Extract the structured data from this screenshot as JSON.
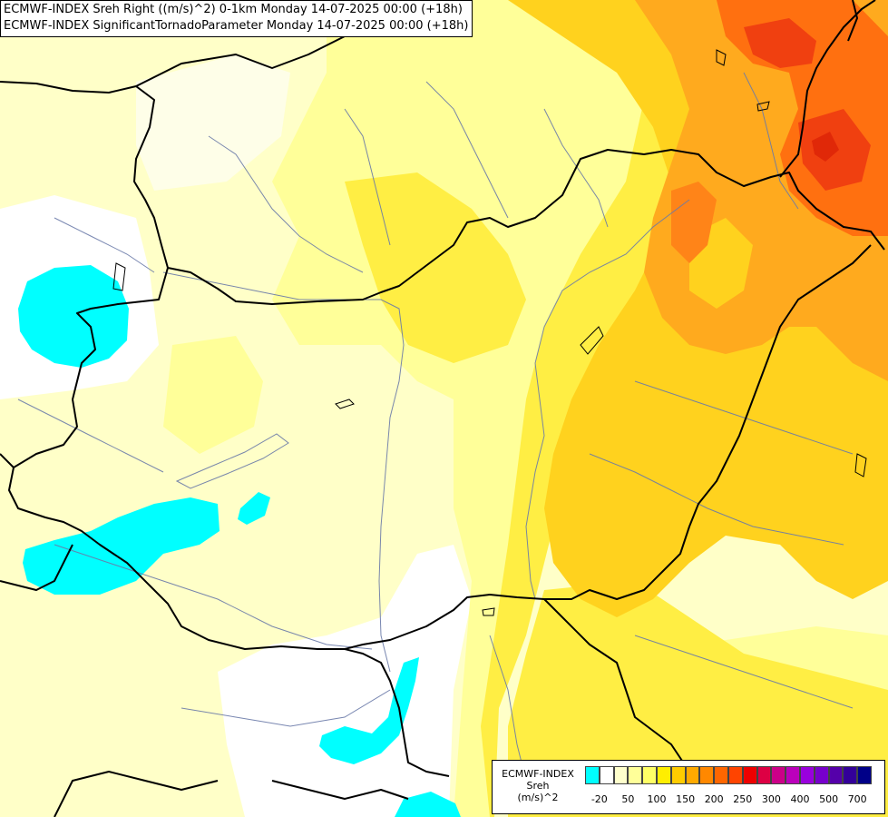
{
  "titles": {
    "line1": "ECMWF-INDEX Sreh Right ((m/s)^2) 0-1km Monday 14-07-2025 00:00 (+18h)",
    "line2": "ECMWF-INDEX SignificantTornadoParameter Monday 14-07-2025 00:00 (+18h)"
  },
  "legend": {
    "line1": "ECMWF-INDEX",
    "line2": "Sreh",
    "line3": "(m/s)^2",
    "ticks": [
      "-20",
      "50",
      "100",
      "150",
      "200",
      "250",
      "300",
      "400",
      "500",
      "700"
    ],
    "colors": [
      "#00ffff",
      "#ffffff",
      "#ffffcc",
      "#ffff99",
      "#ffff66",
      "#ffee00",
      "#ffcc00",
      "#ffaa00",
      "#ff8800",
      "#ff6600",
      "#ff4400",
      "#ee0000",
      "#dd0044",
      "#cc0088",
      "#bb00bb",
      "#9900dd",
      "#7700cc",
      "#5500aa",
      "#330099",
      "#000088"
    ]
  },
  "fill_colors": {
    "background": "#ffffc8",
    "light_yellow": "#ffff99",
    "yellow": "#ffee44",
    "gold": "#ffd21e",
    "orange": "#ffaa1e",
    "dark_orange": "#ff7010",
    "red_orange": "#f04010",
    "cyan": "#00ffff",
    "white": "#ffffff",
    "border": "#000000",
    "river": "#6a7aa8"
  }
}
